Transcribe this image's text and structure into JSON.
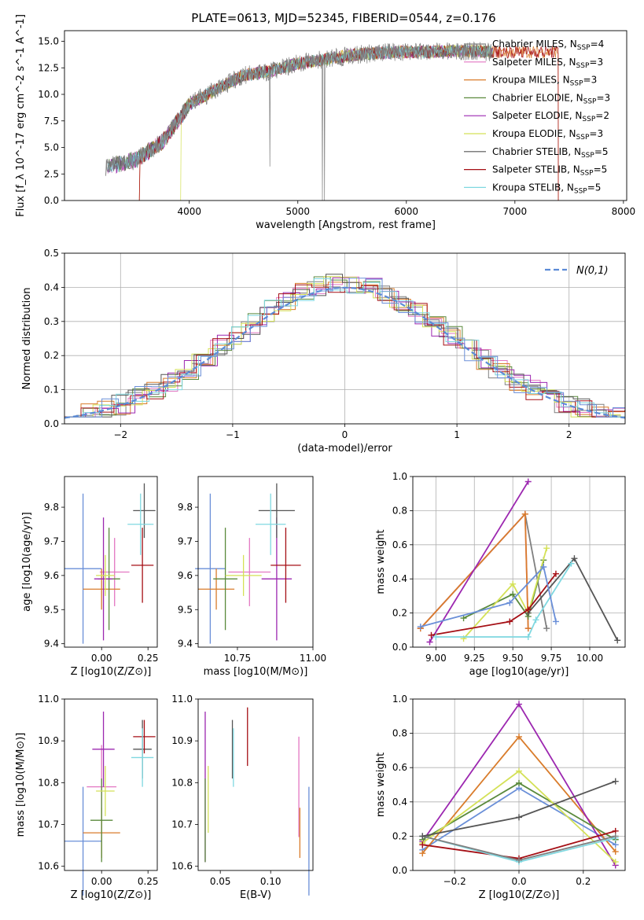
{
  "figure_title": "PLATE=0613, MJD=52345, FIBERID=0544, z=0.176",
  "chart_data": [
    {
      "id": "spectrum",
      "type": "line",
      "title": "PLATE=0613, MJD=52345, FIBERID=0544, z=0.176",
      "xlabel": "wavelength [Angstrom, rest frame]",
      "ylabel": "Flux [f_λ 10^-17 erg cm^-2 s^-1 A^-1]",
      "xlim": [
        2850,
        8030
      ],
      "ylim": [
        0,
        16
      ],
      "xticks": [
        4000,
        5000,
        6000,
        7000,
        8000
      ],
      "yticks": [
        0.0,
        2.5,
        5.0,
        7.5,
        10.0,
        12.5,
        15.0
      ],
      "legend_position": "right",
      "legend": [
        {
          "label": "Chabrier MILES, N_SSP=4",
          "color": "#808080"
        },
        {
          "label": "Salpeter MILES, N_SSP=3",
          "color": "#e377c2"
        },
        {
          "label": "Kroupa MILES, N_SSP=3",
          "color": "#d97c2b"
        },
        {
          "label": "Chabrier ELODIE, N_SSP=3",
          "color": "#5a8a3c"
        },
        {
          "label": "Salpeter ELODIE, N_SSP=2",
          "color": "#9c27b0"
        },
        {
          "label": "Kroupa ELODIE, N_SSP=3",
          "color": "#d4e157"
        },
        {
          "label": "Chabrier STELIB, N_SSP=5",
          "color": "#555555"
        },
        {
          "label": "Salpeter STELIB, N_SSP=5",
          "color": "#a50f15"
        },
        {
          "label": "Kroupa STELIB, N_SSP=5",
          "color": "#7fd8e0"
        }
      ],
      "data_trend": {
        "wavelength": [
          3250,
          3500,
          3750,
          4000,
          4250,
          4500,
          4750,
          5000,
          5250,
          5500,
          5750,
          6000,
          6250,
          6500,
          6800
        ],
        "flux": [
          3.2,
          3.8,
          5.5,
          9.0,
          10.5,
          11.8,
          12.2,
          12.9,
          13.3,
          13.7,
          13.9,
          14.0,
          14.0,
          14.1,
          14.0
        ]
      }
    },
    {
      "id": "residuals",
      "type": "line",
      "xlabel": "(data-model)/error",
      "ylabel": "Normed distribution",
      "xlim": [
        -2.5,
        2.5
      ],
      "ylim": [
        0,
        0.5
      ],
      "xticks": [
        -2,
        -1,
        0,
        1,
        2
      ],
      "yticks": [
        0.0,
        0.1,
        0.2,
        0.3,
        0.4,
        0.5
      ],
      "grid": true,
      "legend": [
        {
          "label": "N(0,1)",
          "color": "#5b8bd6",
          "style": "dashed"
        }
      ],
      "legend_position": "top-right",
      "reference_curve": "normal(0,1)"
    },
    {
      "id": "age_vs_Z",
      "type": "scatter",
      "xlabel": "Z [log10(Z/Z⊙)]",
      "ylabel": "age [log10(age/yr)]",
      "xlim": [
        -0.2,
        0.3
      ],
      "ylim": [
        9.39,
        9.89
      ],
      "xticks": [
        0.0,
        0.25
      ],
      "yticks": [
        9.4,
        9.5,
        9.6,
        9.7,
        9.8
      ],
      "points": [
        {
          "color": "#6a8fd8",
          "x": -0.1,
          "y": 9.62,
          "xerr": 0.1,
          "yerr": 0.22
        },
        {
          "color": "#e377c2",
          "x": 0.07,
          "y": 9.61,
          "xerr": 0.08,
          "yerr": 0.1
        },
        {
          "color": "#d97c2b",
          "x": 0.0,
          "y": 9.56,
          "xerr": 0.1,
          "yerr": 0.06
        },
        {
          "color": "#5a8a3c",
          "x": 0.04,
          "y": 9.59,
          "xerr": 0.06,
          "yerr": 0.15
        },
        {
          "color": "#9c27b0",
          "x": 0.01,
          "y": 9.59,
          "xerr": 0.05,
          "yerr": 0.18
        },
        {
          "color": "#d4e157",
          "x": 0.02,
          "y": 9.6,
          "xerr": 0.05,
          "yerr": 0.06
        },
        {
          "color": "#555555",
          "x": 0.23,
          "y": 9.79,
          "xerr": 0.06,
          "yerr": 0.08
        },
        {
          "color": "#a50f15",
          "x": 0.22,
          "y": 9.63,
          "xerr": 0.06,
          "yerr": 0.11
        },
        {
          "color": "#7fd8e0",
          "x": 0.21,
          "y": 9.75,
          "xerr": 0.07,
          "yerr": 0.09
        }
      ]
    },
    {
      "id": "age_vs_mass",
      "type": "scatter",
      "xlabel": "mass [log10(M/M⊙)]",
      "ylabel": "",
      "xlim": [
        10.62,
        11.0
      ],
      "ylim": [
        9.39,
        9.89
      ],
      "xticks": [
        10.75,
        11.0
      ],
      "yticks": [
        9.4,
        9.5,
        9.6,
        9.7,
        9.8
      ],
      "points": [
        {
          "color": "#6a8fd8",
          "x": 10.66,
          "y": 9.62,
          "xerr": 0.05,
          "yerr": 0.22
        },
        {
          "color": "#e377c2",
          "x": 10.79,
          "y": 9.61,
          "xerr": 0.07,
          "yerr": 0.1
        },
        {
          "color": "#d97c2b",
          "x": 10.68,
          "y": 9.56,
          "xerr": 0.06,
          "yerr": 0.06
        },
        {
          "color": "#5a8a3c",
          "x": 10.71,
          "y": 9.59,
          "xerr": 0.04,
          "yerr": 0.15
        },
        {
          "color": "#9c27b0",
          "x": 10.88,
          "y": 9.59,
          "xerr": 0.05,
          "yerr": 0.18
        },
        {
          "color": "#d4e157",
          "x": 10.77,
          "y": 9.6,
          "xerr": 0.06,
          "yerr": 0.06
        },
        {
          "color": "#555555",
          "x": 10.88,
          "y": 9.79,
          "xerr": 0.06,
          "yerr": 0.08
        },
        {
          "color": "#a50f15",
          "x": 10.91,
          "y": 9.63,
          "xerr": 0.05,
          "yerr": 0.11
        },
        {
          "color": "#7fd8e0",
          "x": 10.86,
          "y": 9.75,
          "xerr": 0.05,
          "yerr": 0.09
        }
      ]
    },
    {
      "id": "weight_vs_age",
      "type": "line",
      "xlabel": "age [log10(age/yr)]",
      "ylabel": "mass weight",
      "xlim": [
        8.85,
        10.23
      ],
      "ylim": [
        0,
        1.0
      ],
      "xticks": [
        9.0,
        9.25,
        9.5,
        9.75,
        10.0
      ],
      "yticks": [
        0.0,
        0.2,
        0.4,
        0.6,
        0.8,
        1.0
      ],
      "grid": true,
      "series": [
        {
          "color": "#808080",
          "x": [
            8.9,
            9.58,
            9.72
          ],
          "y": [
            0.11,
            0.78,
            0.11
          ]
        },
        {
          "color": "#e377c2",
          "x": [
            8.9,
            9.58,
            9.6
          ],
          "y": [
            0.11,
            0.78,
            0.11
          ]
        },
        {
          "color": "#d97c2b",
          "x": [
            8.9,
            9.58,
            9.6
          ],
          "y": [
            0.11,
            0.78,
            0.11
          ]
        },
        {
          "color": "#5a8a3c",
          "x": [
            9.18,
            9.5,
            9.6,
            9.7
          ],
          "y": [
            0.17,
            0.31,
            0.18,
            0.51
          ]
        },
        {
          "color": "#9c27b0",
          "x": [
            8.96,
            9.6
          ],
          "y": [
            0.03,
            0.97
          ]
        },
        {
          "color": "#d4e157",
          "x": [
            9.18,
            9.5,
            9.6,
            9.72
          ],
          "y": [
            0.05,
            0.37,
            0.2,
            0.58
          ]
        },
        {
          "color": "#555555",
          "x": [
            9.6,
            9.9,
            10.18
          ],
          "y": [
            0.2,
            0.52,
            0.04
          ]
        },
        {
          "color": "#a50f15",
          "x": [
            8.97,
            9.48,
            9.6,
            9.78
          ],
          "y": [
            0.07,
            0.15,
            0.22,
            0.43
          ]
        },
        {
          "color": "#7fd8e0",
          "x": [
            9.0,
            9.6,
            9.65,
            9.88
          ],
          "y": [
            0.06,
            0.06,
            0.16,
            0.49
          ]
        },
        {
          "color": "#6a8fd8",
          "x": [
            8.9,
            9.48,
            9.7,
            9.78
          ],
          "y": [
            0.12,
            0.26,
            0.47,
            0.15
          ]
        }
      ]
    },
    {
      "id": "mass_vs_Z",
      "type": "scatter",
      "xlabel": "Z [log10(Z/Z⊙)]",
      "ylabel": "mass [log10(M/M⊙)]",
      "xlim": [
        -0.2,
        0.3
      ],
      "ylim": [
        10.59,
        11.0
      ],
      "xticks": [
        0.0,
        0.25
      ],
      "yticks": [
        10.6,
        10.7,
        10.8,
        10.9,
        11.0
      ],
      "points": [
        {
          "color": "#6a8fd8",
          "x": -0.1,
          "y": 10.66,
          "xerr": 0.1,
          "yerr": 0.13
        },
        {
          "color": "#e377c2",
          "x": 0.0,
          "y": 10.79,
          "xerr": 0.08,
          "yerr": 0.1
        },
        {
          "color": "#d97c2b",
          "x": 0.0,
          "y": 10.68,
          "xerr": 0.1,
          "yerr": 0.06
        },
        {
          "color": "#5a8a3c",
          "x": 0.0,
          "y": 10.71,
          "xerr": 0.06,
          "yerr": 0.1
        },
        {
          "color": "#9c27b0",
          "x": 0.01,
          "y": 10.88,
          "xerr": 0.06,
          "yerr": 0.09
        },
        {
          "color": "#d4e157",
          "x": 0.02,
          "y": 10.78,
          "xerr": 0.05,
          "yerr": 0.06
        },
        {
          "color": "#555555",
          "x": 0.22,
          "y": 10.88,
          "xerr": 0.05,
          "yerr": 0.07
        },
        {
          "color": "#a50f15",
          "x": 0.23,
          "y": 10.91,
          "xerr": 0.06,
          "yerr": 0.04
        },
        {
          "color": "#7fd8e0",
          "x": 0.22,
          "y": 10.86,
          "xerr": 0.06,
          "yerr": 0.07
        }
      ]
    },
    {
      "id": "mass_vs_EBV",
      "type": "scatter",
      "xlabel": "E(B-V)",
      "ylabel": "",
      "xlim": [
        0.028,
        0.142
      ],
      "ylim": [
        10.59,
        11.0
      ],
      "xticks": [
        0.05,
        0.1
      ],
      "yticks": [
        10.6,
        10.7,
        10.8,
        10.9,
        11.0
      ],
      "points": [
        {
          "color": "#9c27b0",
          "x": 0.035,
          "y": 10.79,
          "yerr": 0.18
        },
        {
          "color": "#5a8a3c",
          "x": 0.035,
          "y": 10.71,
          "yerr": 0.1
        },
        {
          "color": "#d4e157",
          "x": 0.038,
          "y": 10.76,
          "yerr": 0.08
        },
        {
          "color": "#555555",
          "x": 0.062,
          "y": 10.88,
          "yerr": 0.07
        },
        {
          "color": "#7fd8e0",
          "x": 0.063,
          "y": 10.86,
          "yerr": 0.07
        },
        {
          "color": "#a50f15",
          "x": 0.077,
          "y": 10.91,
          "yerr": 0.07
        },
        {
          "color": "#e377c2",
          "x": 0.128,
          "y": 10.79,
          "yerr": 0.12
        },
        {
          "color": "#d97c2b",
          "x": 0.129,
          "y": 10.68,
          "yerr": 0.06
        },
        {
          "color": "#6a8fd8",
          "x": 0.138,
          "y": 10.66,
          "yerr": 0.13
        }
      ]
    },
    {
      "id": "weight_vs_Z",
      "type": "line",
      "xlabel": "Z [log10(Z/Z⊙)]",
      "ylabel": "mass weight",
      "xlim": [
        -0.33,
        0.33
      ],
      "ylim": [
        0,
        1.0
      ],
      "xticks": [
        -0.2,
        0.0,
        0.2
      ],
      "yticks": [
        0.0,
        0.2,
        0.4,
        0.6,
        0.8,
        1.0
      ],
      "grid": true,
      "series": [
        {
          "color": "#6a8fd8",
          "x": [
            -0.3,
            0.0,
            0.3
          ],
          "y": [
            0.12,
            0.48,
            0.15
          ]
        },
        {
          "color": "#d97c2b",
          "x": [
            -0.3,
            0.0,
            0.3
          ],
          "y": [
            0.1,
            0.78,
            0.11
          ]
        },
        {
          "color": "#9c27b0",
          "x": [
            -0.3,
            0.0,
            0.3
          ],
          "y": [
            0.17,
            0.97,
            0.03
          ]
        },
        {
          "color": "#5a8a3c",
          "x": [
            -0.3,
            0.0,
            0.3
          ],
          "y": [
            0.18,
            0.51,
            0.18
          ]
        },
        {
          "color": "#d4e157",
          "x": [
            -0.3,
            0.0,
            0.3
          ],
          "y": [
            0.16,
            0.58,
            0.05
          ]
        },
        {
          "color": "#a50f15",
          "x": [
            -0.3,
            0.0,
            0.3
          ],
          "y": [
            0.15,
            0.07,
            0.23
          ]
        },
        {
          "color": "#7fd8e0",
          "x": [
            -0.3,
            0.0,
            0.3
          ],
          "y": [
            0.2,
            0.05,
            0.19
          ]
        },
        {
          "color": "#808080",
          "x": [
            -0.3,
            0.0,
            0.3
          ],
          "y": [
            0.2,
            0.06,
            0.2
          ]
        },
        {
          "color": "#555555",
          "x": [
            -0.3,
            0.0,
            0.3
          ],
          "y": [
            0.2,
            0.31,
            0.52
          ]
        }
      ]
    }
  ]
}
